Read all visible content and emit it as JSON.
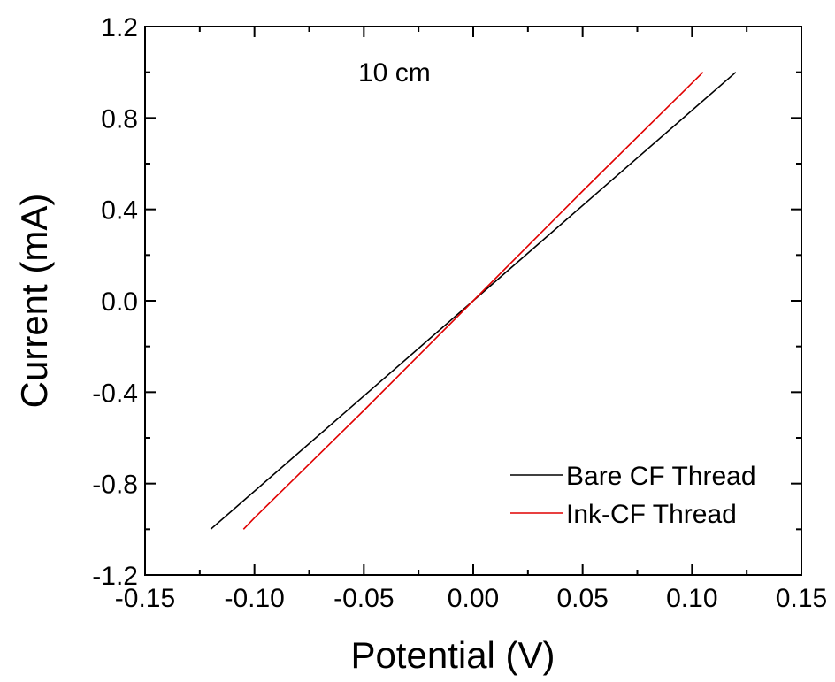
{
  "chart_data": {
    "type": "line",
    "xlabel": "Potential (V)",
    "ylabel": "Current (mA)",
    "xlim": [
      -0.15,
      0.15
    ],
    "ylim": [
      -1.2,
      1.2
    ],
    "x_ticks": [
      -0.15,
      -0.1,
      -0.05,
      0.0,
      0.05,
      0.1,
      0.15
    ],
    "x_tick_labels": [
      "-0.15",
      "-0.10",
      "-0.05",
      "0.00",
      "0.05",
      "0.10",
      "0.15"
    ],
    "y_ticks": [
      -1.2,
      -0.8,
      -0.4,
      0.0,
      0.4,
      0.8,
      1.2
    ],
    "y_tick_labels": [
      "-1.2",
      "-0.8",
      "-0.4",
      "0.0",
      "0.4",
      "0.8",
      "1.2"
    ],
    "annotation": "10 cm",
    "grid": false,
    "legend_position": "bottom-right",
    "series": [
      {
        "name": "Bare CF Thread",
        "color": "#000000",
        "x": [
          -0.12,
          -0.06,
          0.0,
          0.06,
          0.12
        ],
        "y": [
          -1.0,
          -0.5,
          0.0,
          0.5,
          1.0
        ]
      },
      {
        "name": "Ink-CF Thread",
        "color": "#e00000",
        "x": [
          -0.105,
          -0.1,
          -0.05,
          0.0,
          0.05,
          0.105
        ],
        "y": [
          -1.0,
          -0.95,
          -0.48,
          0.0,
          0.48,
          1.0
        ]
      }
    ]
  }
}
